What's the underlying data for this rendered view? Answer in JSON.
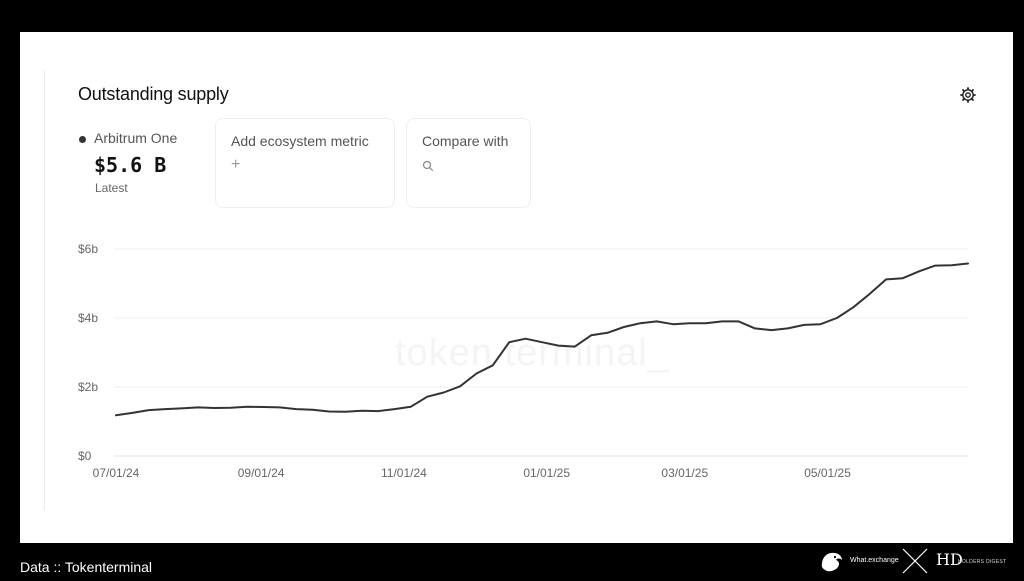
{
  "card": {
    "title": "Outstanding supply",
    "settings_icon": "gear-icon"
  },
  "series_summary": {
    "name": "Arbitrum One",
    "value": "$5.6 B",
    "sub": "Latest",
    "dot_color": "#333333"
  },
  "add_metric": {
    "label": "Add ecosystem metric",
    "icon": "plus-icon",
    "icon_char": "+"
  },
  "compare": {
    "label": "Compare with",
    "icon": "search-icon"
  },
  "watermark": "token terminal_",
  "footer": {
    "source": "Data :: Tokenterminal",
    "brand1": "What.exchange",
    "brand2_mark": "HD",
    "brand2_text": "HOLDERS DIGEST"
  },
  "chart_data": {
    "type": "line",
    "title": "Outstanding supply",
    "xlabel": "",
    "ylabel": "",
    "ylim": [
      0,
      6
    ],
    "y_ticks": [
      0,
      2,
      4,
      6
    ],
    "y_tick_labels": [
      "$0",
      "$2b",
      "$4b",
      "$6b"
    ],
    "x_tick_labels": [
      "07/01/24",
      "09/01/24",
      "11/01/24",
      "01/01/25",
      "03/01/25",
      "05/01/25"
    ],
    "x_tick_dates": [
      "2024-07-01",
      "2024-09-01",
      "2024-11-01",
      "2025-01-01",
      "2025-03-01",
      "2025-05-01"
    ],
    "grid": true,
    "line_color": "#333333",
    "series": [
      {
        "name": "Arbitrum One",
        "x": [
          "2024-07-01",
          "2024-07-08",
          "2024-07-15",
          "2024-07-22",
          "2024-07-29",
          "2024-08-05",
          "2024-08-12",
          "2024-08-19",
          "2024-08-26",
          "2024-09-02",
          "2024-09-09",
          "2024-09-16",
          "2024-09-23",
          "2024-09-30",
          "2024-10-07",
          "2024-10-14",
          "2024-10-21",
          "2024-10-28",
          "2024-11-04",
          "2024-11-11",
          "2024-11-18",
          "2024-11-25",
          "2024-12-02",
          "2024-12-09",
          "2024-12-16",
          "2024-12-23",
          "2024-12-30",
          "2025-01-06",
          "2025-01-13",
          "2025-01-20",
          "2025-01-27",
          "2025-02-03",
          "2025-02-10",
          "2025-02-17",
          "2025-02-24",
          "2025-03-03",
          "2025-03-10",
          "2025-03-17",
          "2025-03-24",
          "2025-03-31",
          "2025-04-07",
          "2025-04-14",
          "2025-04-21",
          "2025-04-28",
          "2025-05-05",
          "2025-05-12",
          "2025-05-19",
          "2025-05-26",
          "2025-06-02",
          "2025-06-09",
          "2025-06-16",
          "2025-06-23",
          "2025-06-30"
        ],
        "values": [
          1.18,
          1.25,
          1.33,
          1.36,
          1.38,
          1.41,
          1.39,
          1.4,
          1.43,
          1.42,
          1.41,
          1.36,
          1.34,
          1.29,
          1.28,
          1.31,
          1.3,
          1.36,
          1.43,
          1.72,
          1.84,
          2.02,
          2.39,
          2.63,
          3.3,
          3.4,
          3.3,
          3.2,
          3.17,
          3.5,
          3.57,
          3.74,
          3.85,
          3.9,
          3.82,
          3.85,
          3.85,
          3.9,
          3.9,
          3.7,
          3.65,
          3.7,
          3.8,
          3.82,
          4.0,
          4.31,
          4.7,
          5.12,
          5.15,
          5.35,
          5.52,
          5.53,
          5.58
        ]
      }
    ]
  }
}
